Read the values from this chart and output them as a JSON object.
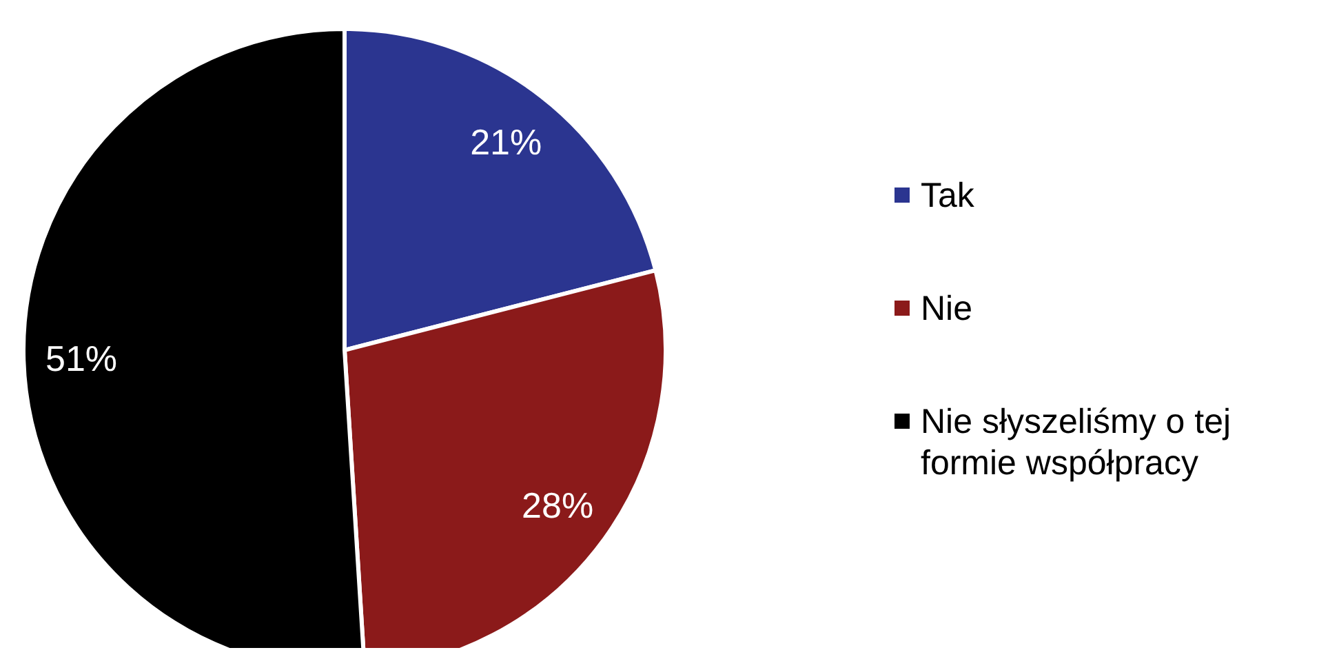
{
  "chart_data": {
    "type": "pie",
    "categories": [
      "Tak",
      "Nie",
      "Nie słyszeliśmy o tej formie współpracy"
    ],
    "values": [
      21,
      28,
      51
    ],
    "colors": [
      "#2b3590",
      "#8b1a1a",
      "#000000"
    ],
    "value_labels": [
      "21%",
      "28%",
      "51%"
    ],
    "legend": "right"
  }
}
